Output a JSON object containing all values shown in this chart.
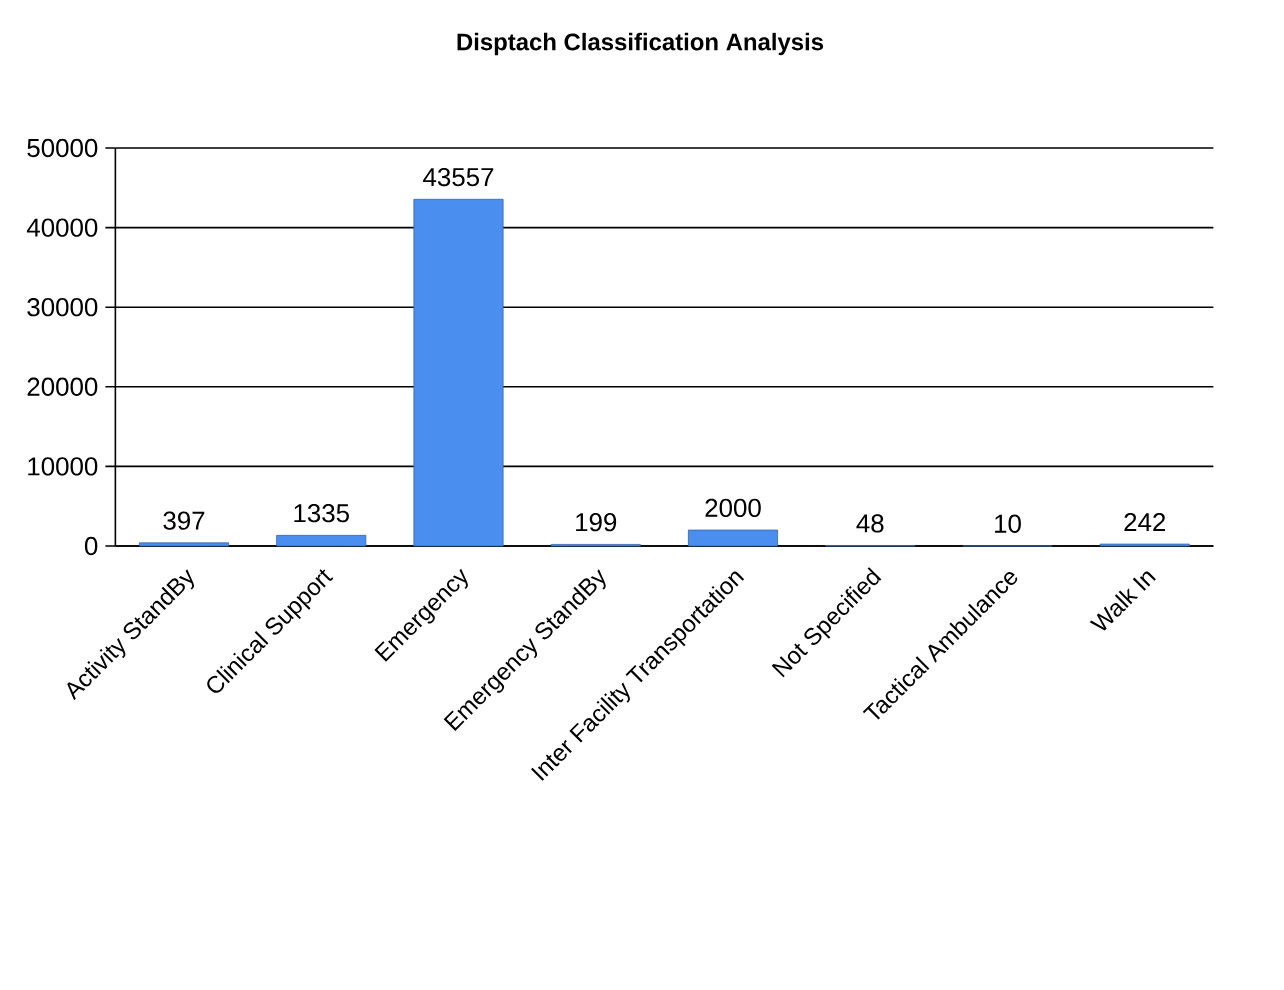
{
  "chart_data": {
    "type": "bar",
    "title": "Disptach Classification Analysis",
    "categories": [
      "Activity StandBy",
      "Clinical Support",
      "Emergency",
      "Emergency StandBy",
      "Inter Facility Transportation",
      "Not Specified",
      "Tactical Ambulance",
      "Walk In"
    ],
    "values": [
      397,
      1335,
      43557,
      199,
      2000,
      48,
      10,
      242
    ],
    "color": "#4a8ff0",
    "ylim": [
      0,
      50000
    ],
    "yticks": [
      0,
      10000,
      20000,
      30000,
      40000,
      50000
    ],
    "grid": "y",
    "data_labels": true
  }
}
